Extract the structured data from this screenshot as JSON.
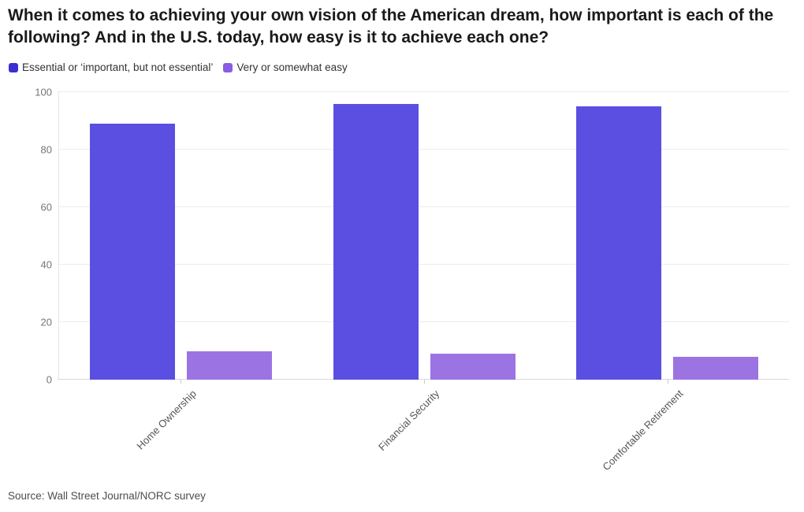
{
  "chart_data": {
    "type": "bar",
    "title": "When it comes to achieving your own vision of the American dream, how important is each of the following? And in the U.S. today, how easy is it to achieve each one?",
    "categories": [
      "Home Ownership",
      "Financial Security",
      "Comfortable Retirement"
    ],
    "series": [
      {
        "name": "Essential or ‘important, but not essential’",
        "legend_color": "#3B2FD1",
        "bar_color": "#5B4FE1",
        "values": [
          89,
          96,
          95
        ]
      },
      {
        "name": "Very or somewhat easy",
        "legend_color": "#8A5CE4",
        "bar_color": "#9C73E3",
        "values": [
          10,
          9,
          8
        ]
      }
    ],
    "xlabel": "",
    "ylabel": "",
    "ylim": [
      0,
      100
    ],
    "yticks": [
      0,
      20,
      40,
      60,
      80,
      100
    ],
    "grid": true,
    "legend_position": "top-left",
    "source": "Source: Wall Street Journal/NORC survey"
  }
}
